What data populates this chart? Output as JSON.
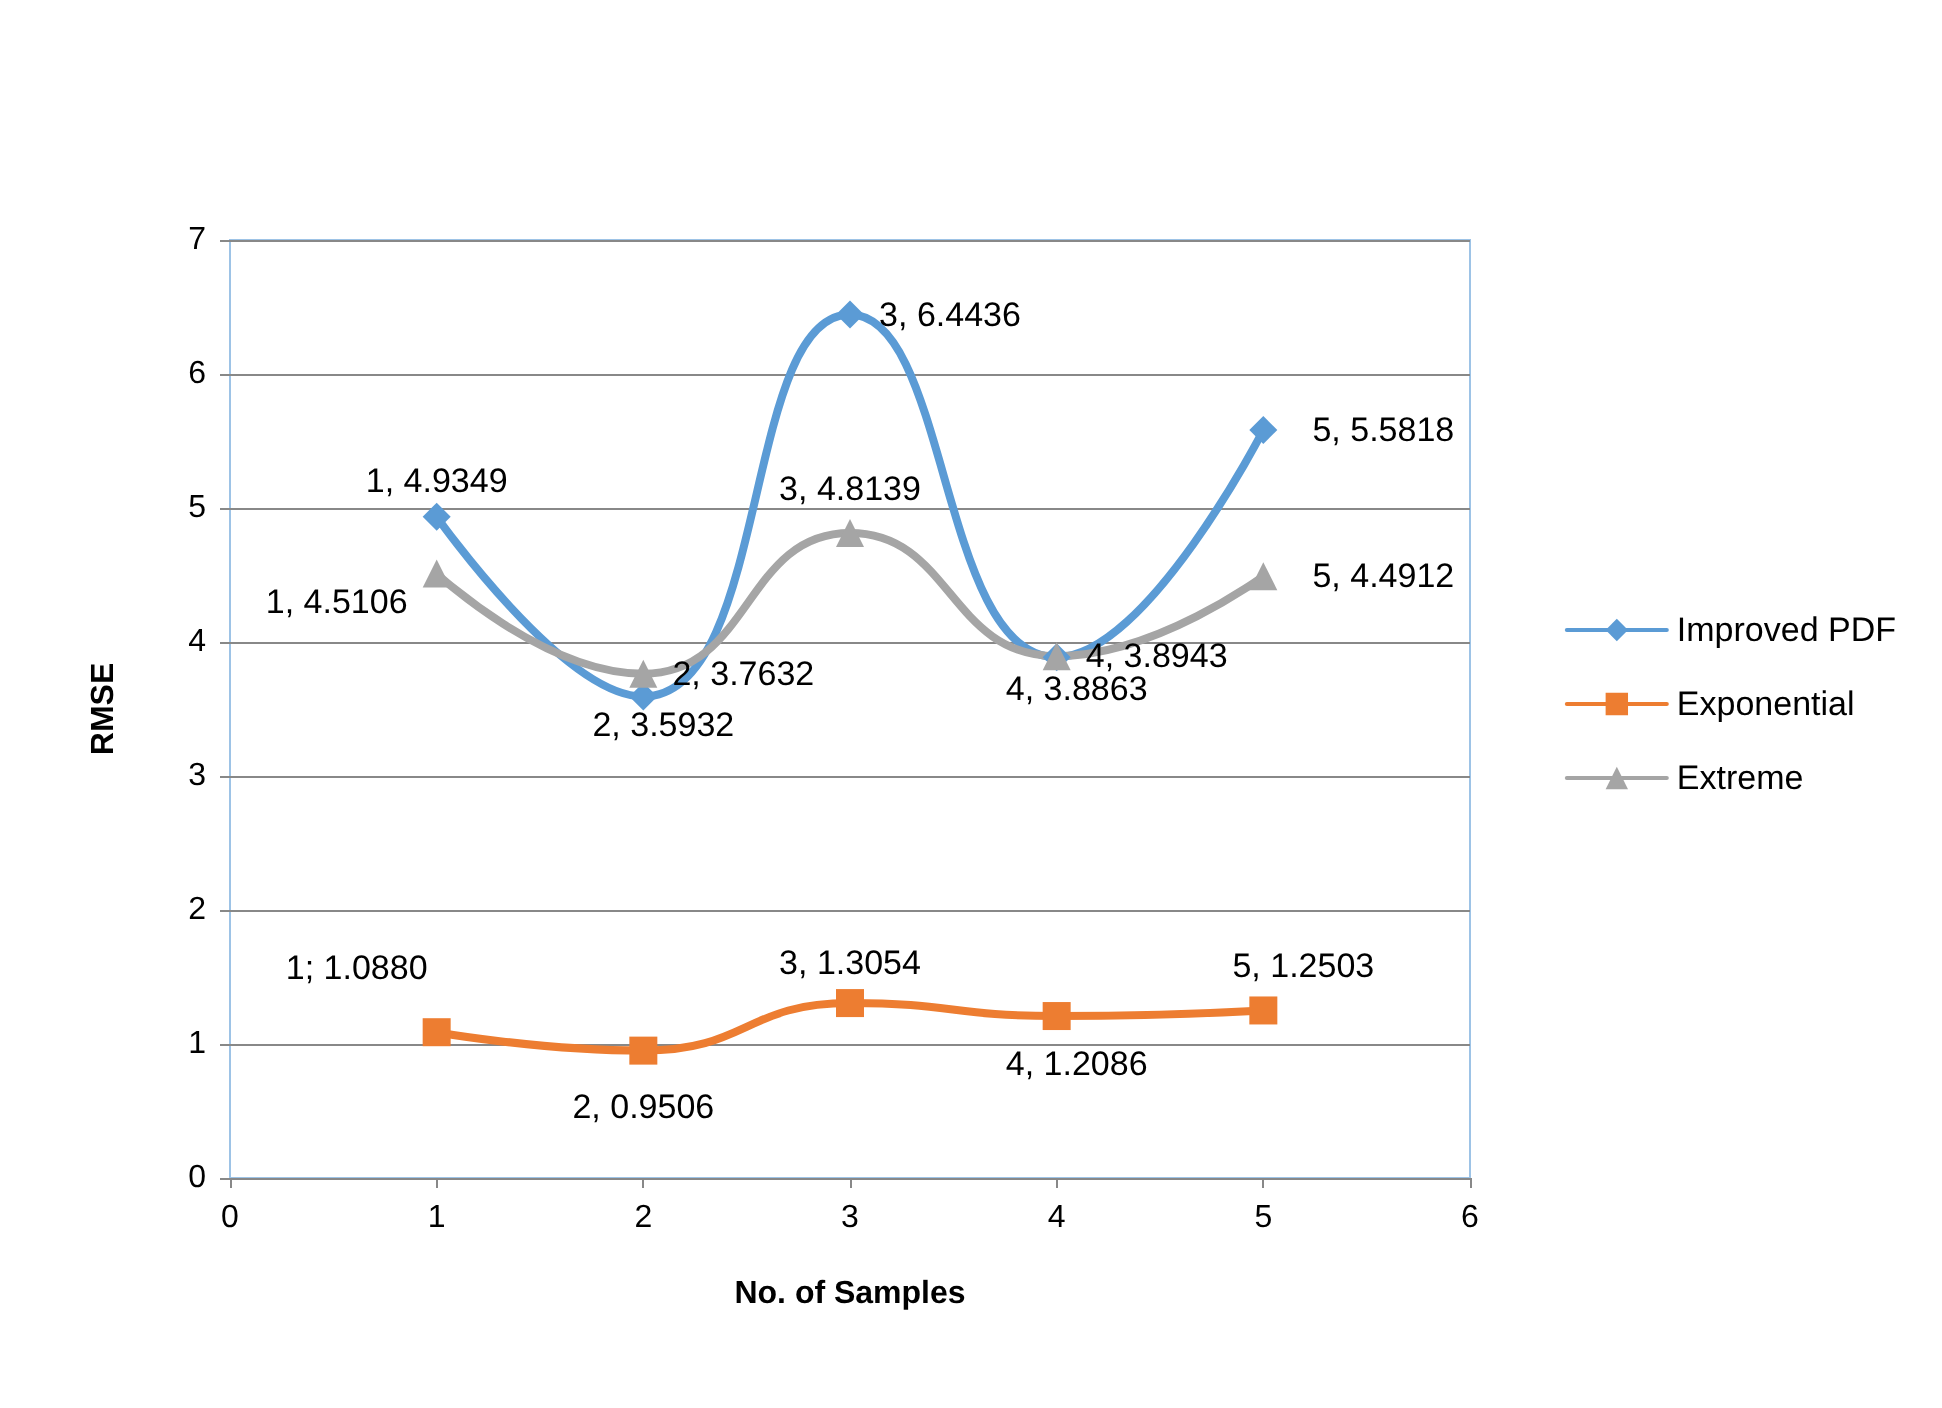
{
  "chart_data": {
    "type": "line",
    "xlabel": "No. of Samples",
    "ylabel": "RMSE",
    "x": [
      1,
      2,
      3,
      4,
      5
    ],
    "xlim": [
      0,
      6
    ],
    "xticks": [
      0,
      1,
      2,
      3,
      4,
      5,
      6
    ],
    "ylim": [
      0,
      7
    ],
    "yticks": [
      0,
      1,
      2,
      3,
      4,
      5,
      6,
      7
    ],
    "grid": "y",
    "legend": "right",
    "series": [
      {
        "name": "Improved PDF",
        "color": "#5b9bd5",
        "marker": "diamond",
        "values": [
          4.9349,
          3.5932,
          6.4436,
          3.8863,
          5.5818
        ],
        "value_labels": [
          "1, 4.9349",
          "2, 3.5932",
          "3, 6.4436",
          "4, 3.8863",
          "5, 5.5818"
        ]
      },
      {
        "name": "Exponential",
        "color": "#ed7d31",
        "marker": "square",
        "values": [
          1.088,
          0.9506,
          1.3054,
          1.2086,
          1.2503
        ],
        "value_labels": [
          "1; 1.0880",
          "2, 0.9506",
          "3, 1.3054",
          "4, 1.2086",
          "5, 1.2503"
        ]
      },
      {
        "name": "Extreme",
        "color": "#a5a5a5",
        "marker": "triangle",
        "values": [
          4.5106,
          3.7632,
          4.8139,
          3.8943,
          4.4912
        ],
        "value_labels": [
          "1, 4.5106",
          "2, 3.7632",
          "3, 4.8139",
          "4, 3.8943",
          "5, 4.4912"
        ]
      }
    ]
  }
}
